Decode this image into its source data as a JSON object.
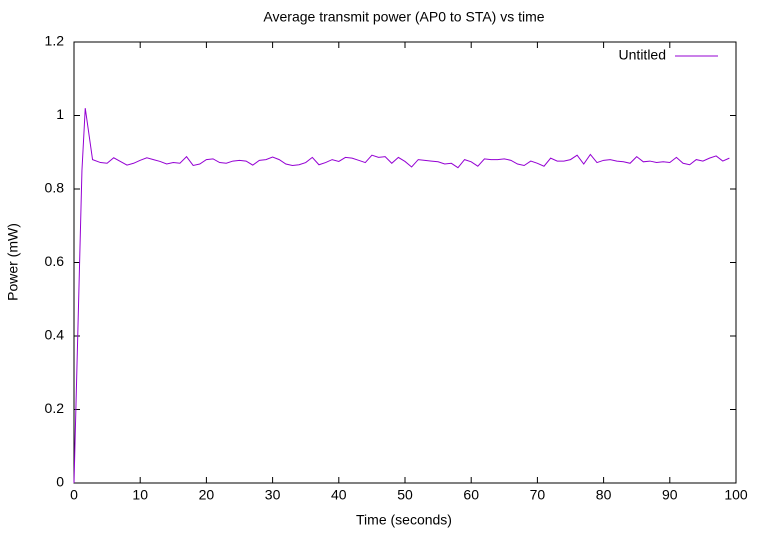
{
  "chart_data": {
    "type": "line",
    "title": "Average transmit power (AP0 to STA) vs time",
    "xlabel": "Time (seconds)",
    "ylabel": "Power (mW)",
    "x": [
      0,
      1.2,
      1.7,
      2.8,
      4,
      5,
      6,
      7,
      8,
      9,
      10,
      11,
      12,
      13,
      14,
      15,
      16,
      17,
      18,
      19,
      20,
      21,
      22,
      23,
      24,
      25,
      26,
      27,
      28,
      29,
      30,
      31,
      32,
      33,
      34,
      35,
      36,
      37,
      38,
      39,
      40,
      41,
      42,
      43,
      44,
      45,
      46,
      47,
      48,
      49,
      50,
      51,
      52,
      53,
      54,
      55,
      56,
      57,
      58,
      59,
      60,
      61,
      62,
      63,
      64,
      65,
      66,
      67,
      68,
      69,
      70,
      71,
      72,
      73,
      74,
      75,
      76,
      77,
      78,
      79,
      80,
      81,
      82,
      83,
      84,
      85,
      86,
      87,
      88,
      89,
      90,
      91,
      92,
      93,
      94,
      95,
      96,
      97,
      98,
      99
    ],
    "series": [
      {
        "name": "Untitled",
        "color": "#9400d3",
        "values": [
          0,
          0.85,
          1.02,
          0.88,
          0.872,
          0.87,
          0.885,
          0.875,
          0.865,
          0.87,
          0.878,
          0.885,
          0.88,
          0.875,
          0.868,
          0.872,
          0.87,
          0.888,
          0.864,
          0.868,
          0.88,
          0.882,
          0.872,
          0.87,
          0.876,
          0.878,
          0.876,
          0.865,
          0.878,
          0.88,
          0.887,
          0.88,
          0.868,
          0.864,
          0.866,
          0.872,
          0.886,
          0.866,
          0.872,
          0.88,
          0.875,
          0.886,
          0.884,
          0.878,
          0.872,
          0.892,
          0.886,
          0.888,
          0.87,
          0.886,
          0.875,
          0.86,
          0.88,
          0.878,
          0.876,
          0.874,
          0.868,
          0.87,
          0.858,
          0.88,
          0.874,
          0.862,
          0.882,
          0.88,
          0.88,
          0.882,
          0.878,
          0.868,
          0.864,
          0.876,
          0.87,
          0.862,
          0.884,
          0.876,
          0.876,
          0.88,
          0.892,
          0.868,
          0.894,
          0.872,
          0.878,
          0.88,
          0.876,
          0.874,
          0.87,
          0.888,
          0.874,
          0.876,
          0.872,
          0.874,
          0.872,
          0.886,
          0.87,
          0.866,
          0.88,
          0.876,
          0.884,
          0.89,
          0.876,
          0.884
        ]
      }
    ],
    "xlim": [
      0,
      100
    ],
    "xticks": [
      0,
      10,
      20,
      30,
      40,
      50,
      60,
      70,
      80,
      90,
      100
    ],
    "ylim": [
      0,
      1.2
    ],
    "yticks": [
      0,
      0.2,
      0.4,
      0.6,
      0.8,
      1,
      1.2
    ],
    "grid": false,
    "legend": "top-right"
  }
}
